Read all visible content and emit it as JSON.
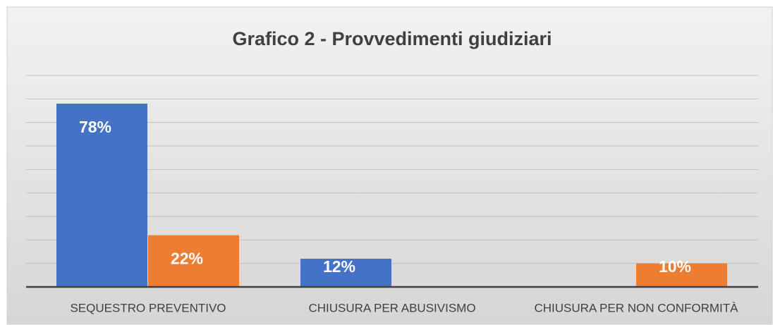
{
  "chart_data": {
    "type": "bar",
    "title": "Grafico 2 - Provvedimenti giudiziari",
    "categories": [
      "SEQUESTRO PREVENTIVO",
      "CHIUSURA PER ABUSIVISMO",
      "CHIUSURA PER NON CONFORMITÀ"
    ],
    "series": [
      {
        "color": "#4472c4",
        "values": [
          78,
          12,
          null
        ],
        "value_labels": [
          "78%",
          "12%",
          null
        ]
      },
      {
        "color": "#ed7d31",
        "values": [
          22,
          null,
          10
        ],
        "value_labels": [
          "22%",
          null,
          "10%"
        ]
      }
    ],
    "ylim": [
      0,
      90
    ],
    "yticks": [
      0,
      10,
      20,
      30,
      40,
      50,
      60,
      70,
      80,
      90
    ],
    "grid": true
  }
}
